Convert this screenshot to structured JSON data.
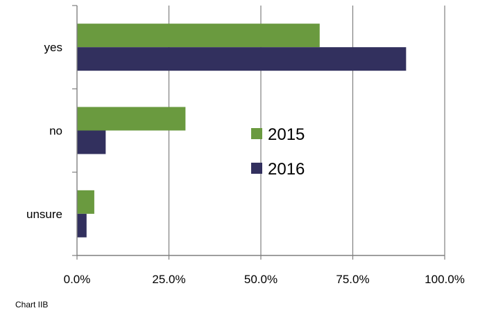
{
  "chart_data": {
    "type": "bar",
    "orientation": "horizontal",
    "categories": [
      "yes",
      "no",
      "unsure"
    ],
    "series": [
      {
        "name": "2015",
        "color": "#6A9A3F",
        "values": [
          66.0,
          29.5,
          4.7
        ]
      },
      {
        "name": "2016",
        "color": "#32305E",
        "values": [
          89.5,
          7.8,
          2.6
        ]
      }
    ],
    "x_ticks": [
      "0.0%",
      "25.0%",
      "50.0%",
      "75.0%",
      "100.0%"
    ],
    "xlim": [
      0,
      100
    ],
    "grid": "vertical gridlines",
    "legend_position": "center-right"
  },
  "caption": "Chart IIB"
}
